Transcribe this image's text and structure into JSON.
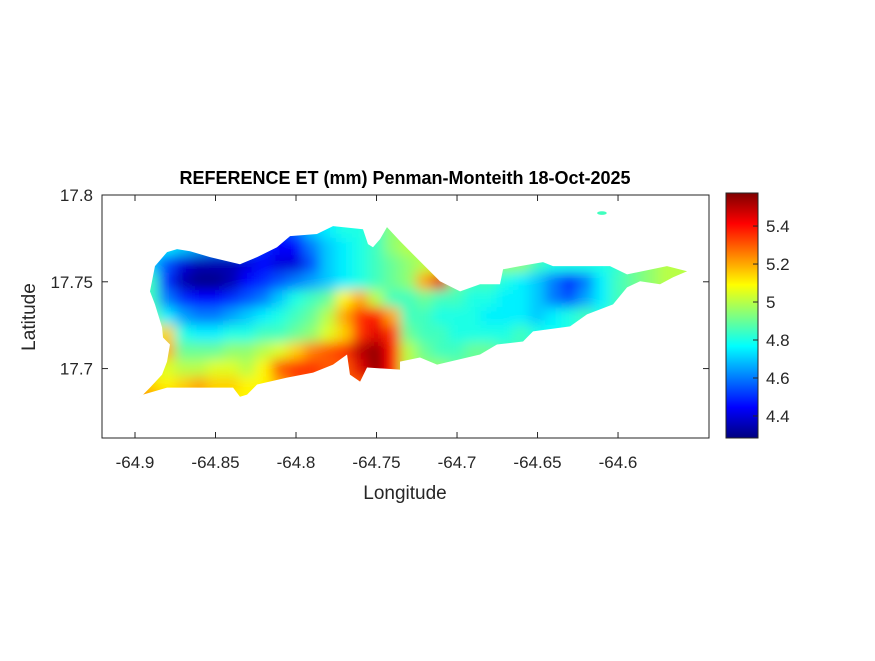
{
  "chart_data": {
    "type": "heatmap",
    "title": "REFERENCE ET (mm) Penman-Monteith 18-Oct-2025",
    "xlabel": "Longitude",
    "ylabel": "Latitude",
    "xlim": [
      -64.9205,
      -64.5435
    ],
    "ylim": [
      17.66,
      17.8
    ],
    "xticks": [
      -64.9,
      -64.85,
      -64.8,
      -64.75,
      -64.7,
      -64.65,
      -64.6
    ],
    "xtick_labels": [
      "-64.9",
      "-64.85",
      "-64.8",
      "-64.75",
      "-64.7",
      "-64.65",
      "-64.6"
    ],
    "yticks": [
      17.7,
      17.75,
      17.8
    ],
    "ytick_labels": [
      "17.7",
      "17.75",
      "17.8"
    ],
    "colormap": "jet",
    "clim": [
      4.284,
      5.574
    ],
    "colorbar": {
      "location": "right",
      "ticks": [
        4.4,
        4.6,
        4.8,
        5,
        5.2,
        5.4
      ],
      "tick_labels": [
        "4.4",
        "4.6",
        "4.8",
        "5",
        "5.2",
        "5.4"
      ]
    },
    "grid": false,
    "grid_lon": [
      -64.9,
      -64.89,
      -64.88,
      -64.87,
      -64.86,
      -64.85,
      -64.84,
      -64.83,
      -64.82,
      -64.81,
      -64.8,
      -64.79,
      -64.78,
      -64.77,
      -64.76,
      -64.75,
      -64.74,
      -64.73,
      -64.72,
      -64.71,
      -64.7,
      -64.69,
      -64.68,
      -64.67,
      -64.66,
      -64.65,
      -64.64,
      -64.63,
      -64.62,
      -64.61,
      -64.6,
      -64.59,
      -64.58,
      -64.57,
      -64.56
    ],
    "grid_lat": [
      17.79,
      17.78,
      17.77,
      17.76,
      17.75,
      17.74,
      17.73,
      17.72,
      17.71,
      17.7,
      17.69,
      17.68
    ],
    "values": [
      [
        null,
        null,
        null,
        null,
        null,
        null,
        null,
        null,
        null,
        null,
        null,
        null,
        null,
        null,
        null,
        null,
        null,
        null,
        null,
        null,
        null,
        null,
        null,
        null,
        null,
        null,
        null,
        null,
        null,
        4.85,
        null,
        null,
        null,
        null,
        null
      ],
      [
        null,
        null,
        null,
        null,
        null,
        null,
        null,
        null,
        null,
        null,
        null,
        4.7,
        4.75,
        4.8,
        4.8,
        4.85,
        4.95,
        null,
        null,
        null,
        null,
        null,
        null,
        null,
        null,
        null,
        null,
        null,
        null,
        null,
        null,
        null,
        null,
        null,
        null
      ],
      [
        null,
        null,
        4.75,
        4.7,
        4.65,
        4.6,
        4.6,
        4.55,
        4.5,
        4.45,
        4.45,
        4.6,
        4.7,
        4.75,
        4.8,
        4.85,
        4.95,
        5.0,
        null,
        null,
        null,
        null,
        null,
        null,
        null,
        null,
        null,
        null,
        null,
        null,
        null,
        null,
        null,
        null,
        null
      ],
      [
        null,
        4.7,
        4.55,
        4.4,
        4.35,
        4.35,
        4.35,
        4.4,
        4.45,
        4.4,
        4.4,
        4.55,
        4.7,
        4.75,
        4.8,
        4.85,
        4.9,
        4.95,
        5.0,
        5.05,
        null,
        null,
        null,
        4.95,
        4.95,
        4.85,
        4.8,
        4.8,
        4.8,
        4.8,
        null,
        null,
        null,
        null,
        null
      ],
      [
        null,
        4.85,
        4.5,
        4.35,
        4.3,
        4.3,
        4.35,
        4.45,
        4.5,
        4.55,
        4.6,
        4.65,
        4.7,
        4.75,
        4.8,
        4.85,
        4.9,
        4.95,
        5.2,
        5.45,
        4.9,
        4.85,
        4.85,
        4.8,
        4.75,
        4.7,
        4.6,
        4.5,
        4.6,
        4.75,
        4.85,
        4.9,
        4.95,
        5.0,
        5.0
      ],
      [
        null,
        4.85,
        4.6,
        4.5,
        4.45,
        4.45,
        4.5,
        4.55,
        4.6,
        4.7,
        4.8,
        4.85,
        4.9,
        5.1,
        5.2,
        5.0,
        4.85,
        4.85,
        4.9,
        4.85,
        4.85,
        4.8,
        4.8,
        4.75,
        4.75,
        4.7,
        4.6,
        4.55,
        4.65,
        4.75,
        4.85,
        null,
        null,
        null,
        null
      ],
      [
        null,
        4.9,
        4.75,
        4.65,
        4.6,
        4.6,
        4.65,
        4.7,
        4.75,
        4.8,
        4.85,
        4.9,
        5.0,
        5.2,
        5.35,
        5.4,
        5.2,
        4.85,
        4.85,
        4.8,
        4.8,
        4.8,
        4.75,
        4.75,
        4.75,
        4.7,
        4.75,
        4.8,
        4.85,
        null,
        null,
        null,
        null,
        null,
        null
      ],
      [
        null,
        5.0,
        5.15,
        4.8,
        4.75,
        4.75,
        4.8,
        4.8,
        4.85,
        4.85,
        4.9,
        4.95,
        5.05,
        5.15,
        5.35,
        5.45,
        5.35,
        4.9,
        4.85,
        4.85,
        4.8,
        4.8,
        4.8,
        4.8,
        4.85,
        4.8,
        null,
        null,
        null,
        null,
        null,
        null,
        null,
        null,
        null
      ],
      [
        null,
        5.1,
        5.2,
        4.9,
        4.9,
        4.9,
        4.95,
        4.95,
        5.0,
        5.05,
        5.15,
        5.25,
        5.3,
        5.35,
        5.5,
        5.55,
        5.4,
        5.0,
        4.9,
        4.85,
        4.85,
        4.9,
        4.9,
        null,
        null,
        null,
        null,
        null,
        null,
        null,
        null,
        null,
        null,
        null,
        null
      ],
      [
        null,
        5.05,
        5.05,
        5.0,
        5.0,
        5.05,
        5.05,
        5.0,
        5.1,
        5.3,
        5.35,
        5.35,
        5.3,
        5.3,
        5.45,
        5.55,
        5.4,
        5.0,
        4.95,
        4.95,
        null,
        null,
        null,
        null,
        null,
        null,
        null,
        null,
        null,
        null,
        null,
        null,
        null,
        null,
        null
      ],
      [
        5.2,
        5.15,
        5.1,
        5.15,
        5.2,
        5.15,
        5.15,
        5.1,
        5.1,
        5.2,
        5.3,
        5.3,
        5.35,
        5.3,
        5.3,
        null,
        null,
        null,
        null,
        null,
        null,
        null,
        null,
        null,
        null,
        null,
        null,
        null,
        null,
        null,
        null,
        null,
        null,
        null,
        null
      ],
      [
        5.25,
        5.25,
        5.2,
        null,
        null,
        null,
        5.1,
        null,
        null,
        null,
        null,
        null,
        null,
        null,
        null,
        null,
        null,
        null,
        null,
        null,
        null,
        null,
        null,
        null,
        null,
        null,
        null,
        null,
        null,
        null,
        null,
        null,
        null,
        null,
        null
      ]
    ],
    "coastline": [
      [
        -64.9012,
        17.6792
      ],
      [
        -64.8907,
        17.689
      ],
      [
        -64.8832,
        17.6965
      ],
      [
        -64.8801,
        17.704
      ],
      [
        -64.8783,
        17.7139
      ],
      [
        -64.8826,
        17.7179
      ],
      [
        -64.8832,
        17.7237
      ],
      [
        -64.8876,
        17.737
      ],
      [
        -64.8907,
        17.7445
      ],
      [
        -64.8876,
        17.759
      ],
      [
        -64.8801,
        17.7671
      ],
      [
        -64.8739,
        17.7688
      ],
      [
        -64.8658,
        17.7676
      ],
      [
        -64.8534,
        17.7642
      ],
      [
        -64.8348,
        17.7601
      ],
      [
        -64.8242,
        17.7642
      ],
      [
        -64.8118,
        17.7699
      ],
      [
        -64.8037,
        17.7763
      ],
      [
        -64.787,
        17.7775
      ],
      [
        -64.777,
        17.7821
      ],
      [
        -64.7584,
        17.7803
      ],
      [
        -64.7553,
        17.7717
      ],
      [
        -64.7522,
        17.7699
      ],
      [
        -64.7478,
        17.7746
      ],
      [
        -64.7435,
        17.7815
      ],
      [
        -64.7354,
        17.7734
      ],
      [
        -64.723,
        17.7618
      ],
      [
        -64.7106,
        17.7503
      ],
      [
        -64.6981,
        17.7445
      ],
      [
        -64.6857,
        17.7486
      ],
      [
        -64.6733,
        17.7486
      ],
      [
        -64.6714,
        17.7572
      ],
      [
        -64.6609,
        17.759
      ],
      [
        -64.6466,
        17.7613
      ],
      [
        -64.6404,
        17.759
      ],
      [
        -64.605,
        17.759
      ],
      [
        -64.5944,
        17.7543
      ],
      [
        -64.5696,
        17.759
      ],
      [
        -64.5571,
        17.7561
      ],
      [
        -64.5658,
        17.7526
      ],
      [
        -64.5739,
        17.7486
      ],
      [
        -64.5863,
        17.7503
      ],
      [
        -64.5944,
        17.7468
      ],
      [
        -64.6031,
        17.737
      ],
      [
        -64.6193,
        17.7312
      ],
      [
        -64.6298,
        17.7243
      ],
      [
        -64.6528,
        17.7214
      ],
      [
        -64.659,
        17.7156
      ],
      [
        -64.6752,
        17.7139
      ],
      [
        -64.6857,
        17.7081
      ],
      [
        -64.7124,
        17.7023
      ],
      [
        -64.723,
        17.7064
      ],
      [
        -64.7354,
        17.704
      ],
      [
        -64.7354,
        17.6994
      ],
      [
        -64.7559,
        17.7006
      ],
      [
        -64.7602,
        17.6925
      ],
      [
        -64.7665,
        17.6965
      ],
      [
        -64.7683,
        17.7081
      ],
      [
        -64.777,
        17.7023
      ],
      [
        -64.7894,
        17.6977
      ],
      [
        -64.8056,
        17.6948
      ],
      [
        -64.8242,
        17.6908
      ],
      [
        -64.8304,
        17.685
      ],
      [
        -64.8348,
        17.6838
      ],
      [
        -64.8391,
        17.689
      ],
      [
        -64.8596,
        17.689
      ],
      [
        -64.8801,
        17.689
      ],
      [
        -64.895,
        17.685
      ]
    ],
    "islet": {
      "lon": [
        -64.613,
        -64.607
      ],
      "lat": 17.7896,
      "value": 4.85
    }
  }
}
